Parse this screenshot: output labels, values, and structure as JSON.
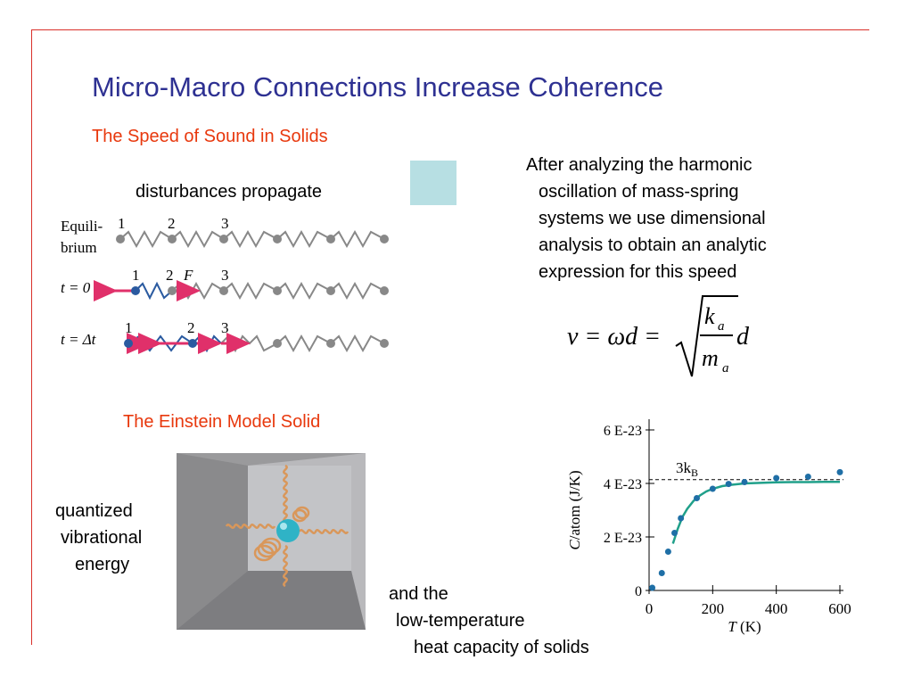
{
  "slide": {
    "title": "Micro-Macro Connections Increase Coherence",
    "accent_title_color": "#2e3192",
    "accent_subtitle_color": "#e8380d",
    "rule_color": "#d9302a"
  },
  "sound_section": {
    "subtitle": "The Speed of Sound in Solids",
    "caption": "disturbances propagate",
    "paragraph_lines": [
      "After analyzing the harmonic",
      "oscillation of mass-spring",
      "systems we use dimensional",
      "analysis to obtain an analytic",
      "expression for this speed"
    ],
    "formula": {
      "lhs": "v = ωd =",
      "numerator": "k",
      "numerator_sub": "a",
      "denominator": "m",
      "denominator_sub": "a",
      "trailing": "d"
    },
    "diagram": {
      "rows": [
        {
          "label_line1": "Equili-",
          "label_line2": "brium",
          "ticks": [
            "1",
            "2",
            "3"
          ]
        },
        {
          "label": "t = 0",
          "ticks": [
            "1",
            "2",
            "3"
          ],
          "force_label": "F"
        },
        {
          "label": "t = Δt",
          "ticks": [
            "1",
            "2",
            "3"
          ]
        }
      ]
    }
  },
  "einstein_section": {
    "subtitle": "The Einstein Model Solid",
    "caption_lines": [
      "quantized",
      "vibrational",
      "energy"
    ],
    "bottom_caption_lines": [
      "and the",
      "low-temperature",
      "heat capacity of solids"
    ]
  },
  "chart_data": {
    "type": "scatter",
    "xlabel": "T (K)",
    "ylabel": "C/atom (J/K)",
    "xlim": [
      0,
      600
    ],
    "ylim": [
      0,
      6e-23
    ],
    "x_ticks": [
      "0",
      "200",
      "400",
      "600"
    ],
    "y_ticks": [
      "0",
      "2 E-23",
      "4 E-23",
      "6 E-23"
    ],
    "reference_line": {
      "label": "3k",
      "label_sub": "B",
      "value": 4.14e-23
    },
    "points_x": [
      10,
      40,
      60,
      80,
      100,
      150,
      200,
      250,
      300,
      400,
      500,
      600
    ],
    "points_y": [
      1e-24,
      6.5e-24,
      1.45e-23,
      2.15e-23,
      2.7e-23,
      3.45e-23,
      3.8e-23,
      3.98e-23,
      4.05e-23,
      4.2e-23,
      4.25e-23,
      4.42e-23
    ],
    "curve_x": [
      75,
      90,
      105,
      120,
      140,
      160,
      180,
      200,
      230,
      260,
      300,
      350,
      400,
      450,
      500,
      550,
      600
    ],
    "curve_y": [
      1.75e-23,
      2.3e-23,
      2.75e-23,
      3.05e-23,
      3.35e-23,
      3.55e-23,
      3.7e-23,
      3.8e-23,
      3.9e-23,
      3.95e-23,
      4e-23,
      4.02e-23,
      4.04e-23,
      4.05e-23,
      4.05e-23,
      4.06e-23,
      4.06e-23
    ],
    "point_color": "#1f6fa6",
    "curve_color": "#20a08a"
  }
}
